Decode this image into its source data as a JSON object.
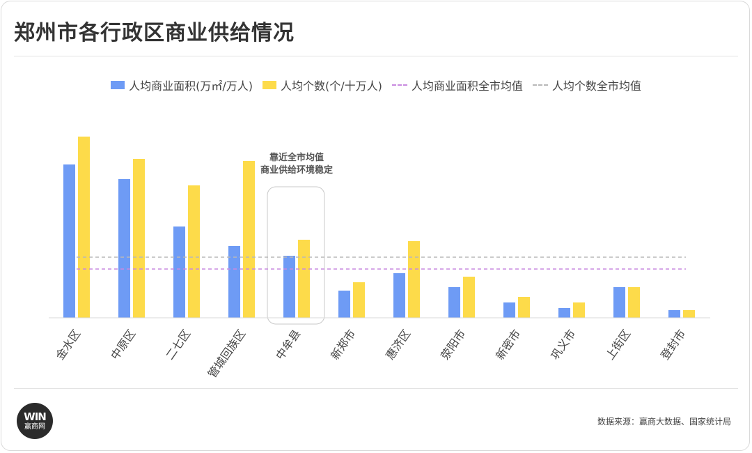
{
  "header": {
    "title": "郑州市各行政区商业供给情况"
  },
  "footer": {
    "source": "数据来源：赢商大数据、国家统计局",
    "logo_mark": "WIN",
    "logo_text": "赢商网"
  },
  "colors": {
    "area": "#6e9bf5",
    "count": "#fddb4a",
    "area_avg": "#c98ae0",
    "count_avg": "#b8b8b8"
  },
  "legend": [
    {
      "label": "人均商业面积(万㎡/万人)",
      "kind": "bar",
      "color": "#6e9bf5"
    },
    {
      "label": "人均个数(个/十万人)",
      "kind": "bar",
      "color": "#fddb4a"
    },
    {
      "label": "人均商业面积全市均值",
      "kind": "dash",
      "color": "#c98ae0"
    },
    {
      "label": "人均个数全市均值",
      "kind": "dash",
      "color": "#b8b8b8"
    }
  ],
  "chart_data": {
    "type": "bar",
    "categories": [
      "金水区",
      "中原区",
      "二七区",
      "管城回族区",
      "中牟县",
      "新郑市",
      "惠济区",
      "荥阳市",
      "新密市",
      "巩义市",
      "上街区",
      "登封市"
    ],
    "series": [
      {
        "name": "人均商业面积(万㎡/万人)",
        "values": [
          220,
          199,
          131,
          103,
          89,
          39,
          64,
          44,
          22,
          14,
          44,
          11
        ]
      },
      {
        "name": "人均个数(个/十万人)",
        "values": [
          260,
          228,
          190,
          225,
          112,
          51,
          110,
          59,
          30,
          22,
          44,
          11
        ]
      }
    ],
    "reference_lines": [
      {
        "name": "人均商业面积全市均值",
        "value": 70
      },
      {
        "name": "人均个数全市均值",
        "value": 87
      }
    ],
    "ylim": [
      0,
      300
    ],
    "annotation": {
      "lines": [
        "靠近全市均值",
        "商业供给环境稳定"
      ],
      "category": "中牟县"
    },
    "grid": false,
    "legend_position": "top"
  }
}
